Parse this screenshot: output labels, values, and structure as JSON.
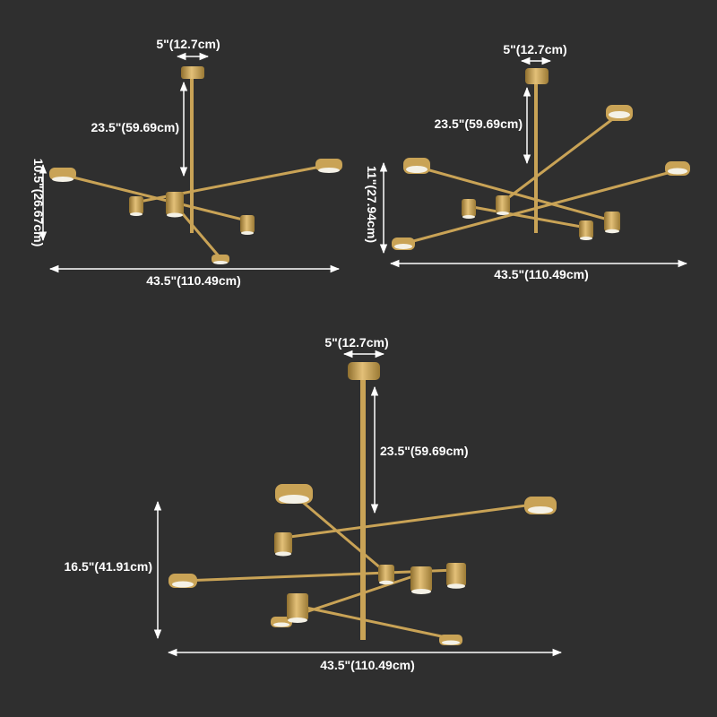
{
  "colors": {
    "background": "#2f2f2f",
    "brass": "#c9a356",
    "brass_dark": "#8f6f2e",
    "light_face": "#f4f1e6",
    "dimension_line": "#ffffff"
  },
  "diagrams": [
    {
      "name": "two-tier-chandelier",
      "canopy_label": "5\"(12.7cm)",
      "rod_label": "23.5\"(59.69cm)",
      "height_label": "10.5\"(26.67cm)",
      "width_label": "43.5\"(110.49cm)"
    },
    {
      "name": "three-tier-chandelier",
      "canopy_label": "5\"(12.7cm)",
      "rod_label": "23.5\"(59.69cm)",
      "height_label": "11\"(27.94cm)",
      "width_label": "43.5\"(110.49cm)"
    },
    {
      "name": "four-tier-chandelier",
      "canopy_label": "5\"(12.7cm)",
      "rod_label": "23.5\"(59.69cm)",
      "height_label": "16.5\"(41.91cm)",
      "width_label": "43.5\"(110.49cm)"
    }
  ]
}
